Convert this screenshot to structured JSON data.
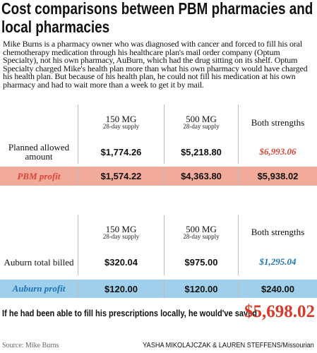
{
  "header": {
    "title": "Cost comparisons between PBM pharmacies and local pharmacies"
  },
  "intro": "Mike Burns is a pharmacy owner who was diagnosed with cancer and forced to fill his oral chemotherapy medication through his healthcare plan's mail order company (Optum Specialty), not his own pharmacy, AuBurn, which had the drug sitting on its shelf. Optum Specialty charged Mike's health plan more than what his own pharmacy would have charged his health plan. But because of his health plan, he could not fill his medication at his own pharmacy and had to wait more than a week to get it by mail.",
  "tables": [
    {
      "columns": [
        {
          "label": "150 MG",
          "sub": "28-day supply"
        },
        {
          "label": "500 MG",
          "sub": "28-day supply"
        },
        {
          "label": "Both strengths"
        }
      ],
      "rows": [
        {
          "label": "Planned allowed amount",
          "cells": [
            "$1,774.26",
            "$5,218.80",
            "$6,993.06"
          ]
        },
        {
          "label": "PBM profit",
          "cells": [
            "$1,574.22",
            "$4,363.80",
            "$5,938.02"
          ]
        }
      ]
    },
    {
      "columns": [
        {
          "label": "150 MG",
          "sub": "28-day supply"
        },
        {
          "label": "500 MG",
          "sub": "28-day supply"
        },
        {
          "label": "Both strengths"
        }
      ],
      "rows": [
        {
          "label": "Auburn total billed",
          "cells": [
            "$320.04",
            "$975.00",
            "$1,295.04"
          ]
        },
        {
          "label": "Auburn profit",
          "cells": [
            "$120.00",
            "$120.00",
            "$240.00"
          ]
        }
      ]
    }
  ],
  "conclusion": {
    "text": "If he had been able to fill his prescriptions locally, he would've saved",
    "amount": "$5,698.02"
  },
  "footer": {
    "source": "Source: Mike Burns",
    "credit": "YASHA MIKOLAJCZAK & LAUREN STEFFENS/Missourian"
  }
}
